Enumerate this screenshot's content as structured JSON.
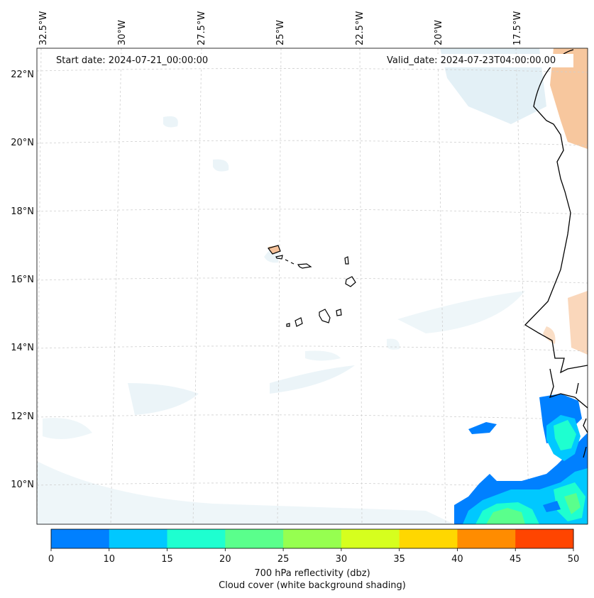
{
  "map": {
    "start_date": "Start date: 2024-07-21_00:00:00",
    "valid_date": "Valid_date: 2024-07-23T04:00:00.00",
    "longitude_labels": [
      "32.5°W",
      "30°W",
      "27.5°W",
      "25°W",
      "22.5°W",
      "20°W",
      "17.5°W"
    ],
    "latitude_labels": [
      "22°N",
      "20°N",
      "18°N",
      "16°N",
      "14°N",
      "12°N",
      "10°N"
    ]
  },
  "colorbar": {
    "ticks": [
      "0",
      "10",
      "15",
      "20",
      "25",
      "30",
      "35",
      "40",
      "45",
      "50"
    ],
    "colors": [
      "#0080ff",
      "#00c8ff",
      "#1effd0",
      "#5aff8c",
      "#96ff50",
      "#d6ff1e",
      "#ffd700",
      "#ff8c00",
      "#ff4500"
    ],
    "label": "700 hPa reflectivity (dbz)",
    "sublabel": "Cloud cover (white background shading)"
  },
  "colors": {
    "coast": "#000000",
    "grid": "#c8c8c8",
    "cloud": "#d6ecf4",
    "dust": "#f7c49a"
  }
}
